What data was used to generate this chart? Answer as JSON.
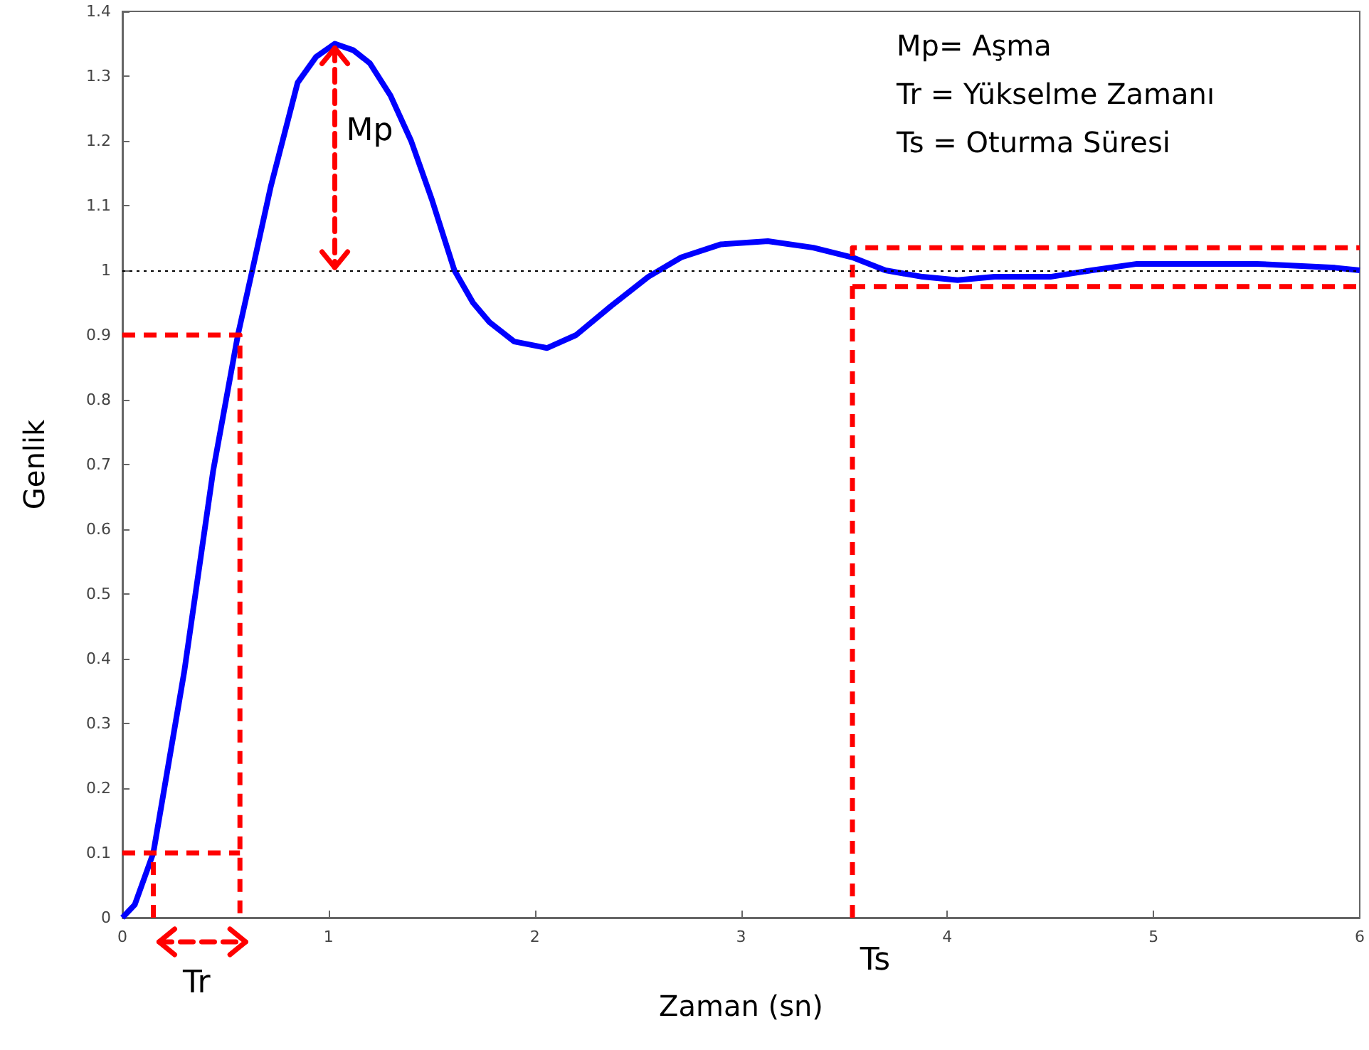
{
  "chart_data": {
    "type": "line",
    "xlabel": "Zaman (sn)",
    "ylabel": "Genlik",
    "xlim": [
      0,
      6
    ],
    "xticks": [
      0,
      1,
      2,
      3,
      4,
      5,
      6
    ],
    "ylim": [
      0,
      1.4
    ],
    "yticks": [
      0,
      0.1,
      0.2,
      0.3,
      0.4,
      0.5,
      0.6,
      0.7,
      0.8,
      0.9,
      1,
      1.1,
      1.2,
      1.3,
      1.4
    ],
    "grid": false,
    "marker": "none",
    "series": [
      {
        "color": "#0000ff",
        "line_style": "solid",
        "x": [
          0,
          0.06,
          0.15,
          0.3,
          0.44,
          0.56,
          0.63,
          0.72,
          0.85,
          0.94,
          1.03,
          1.12,
          1.2,
          1.3,
          1.4,
          1.5,
          1.61,
          1.7,
          1.78,
          1.9,
          2.06,
          2.2,
          2.37,
          2.55,
          2.71,
          2.9,
          3.13,
          3.35,
          3.54,
          3.7,
          3.88,
          4.05,
          4.23,
          4.5,
          4.7,
          4.92,
          5.2,
          5.5,
          5.88,
          6
        ],
        "values": [
          0,
          0.02,
          0.1,
          0.38,
          0.69,
          0.9,
          1.0,
          1.13,
          1.29,
          1.33,
          1.35,
          1.34,
          1.32,
          1.27,
          1.2,
          1.11,
          1.0,
          0.95,
          0.92,
          0.89,
          0.88,
          0.9,
          0.945,
          0.99,
          1.02,
          1.04,
          1.045,
          1.035,
          1.02,
          1.0,
          0.99,
          0.985,
          0.99,
          0.99,
          1.0,
          1.01,
          1.01,
          1.01,
          1.004,
          1.0
        ]
      },
      {
        "color": "#ff0000",
        "line_style": "dashed",
        "x": [
          0,
          0.57,
          0.57
        ],
        "values": [
          0.9,
          0.9,
          0
        ]
      },
      {
        "color": "#ff0000",
        "line_style": "dashed",
        "x": [
          0,
          0.57
        ],
        "values": [
          0.1,
          0.1
        ]
      },
      {
        "color": "#ff0000",
        "line_style": "dashed",
        "x": [
          0.15,
          0.15
        ],
        "values": [
          0,
          0.1
        ]
      },
      {
        "color": "#ff0000",
        "line_style": "dashed",
        "x": [
          3.54,
          3.54,
          6
        ],
        "values": [
          0,
          1.035,
          1.035
        ]
      },
      {
        "color": "#ff0000",
        "line_style": "dashed",
        "x": [
          3.54,
          6
        ],
        "values": [
          0.975,
          0.975
        ]
      }
    ],
    "ref_lines": [
      {
        "axis": "y",
        "value": 1,
        "color": "#000000",
        "line_style": "dotted"
      }
    ],
    "annotations": [
      "Mp= Aşma",
      "Tr = Yükselme Zamanı",
      "Ts = Oturma Süresi",
      "Tr",
      "Ts",
      "Mp"
    ]
  }
}
